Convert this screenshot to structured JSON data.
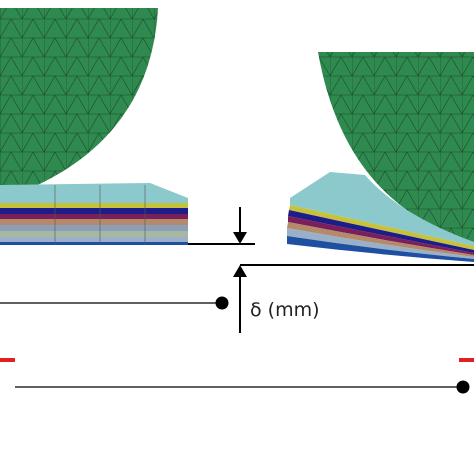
{
  "annotation": {
    "label": "δ (mm)"
  }
}
